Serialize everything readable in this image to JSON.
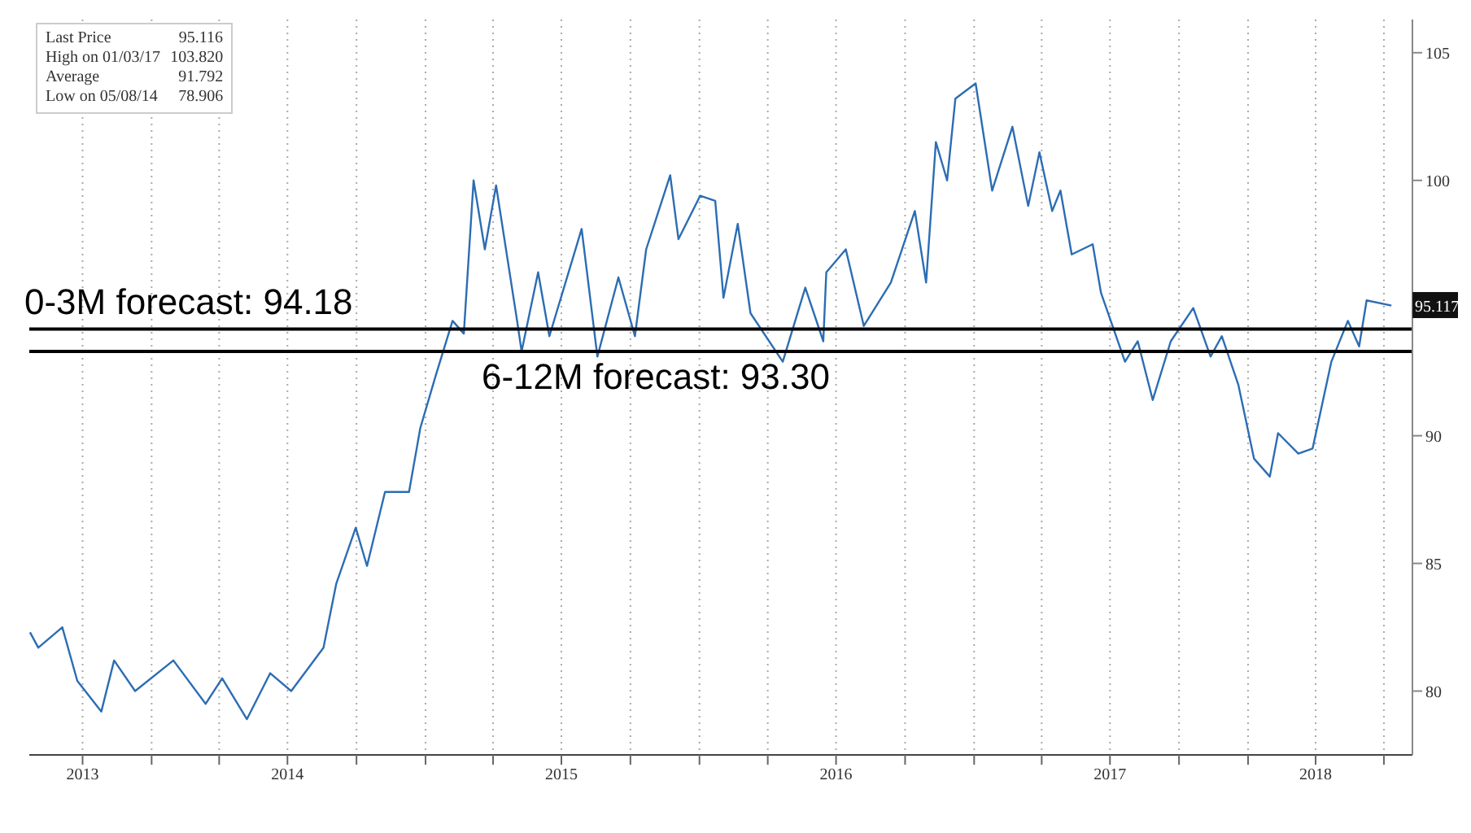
{
  "chart_data": {
    "type": "line",
    "x": [
      "2013-07-23",
      "2013-08-03",
      "2013-09-04",
      "2013-09-24",
      "2013-10-26",
      "2013-11-12",
      "2013-12-10",
      "2014-01-30",
      "2014-03-14",
      "2014-04-05",
      "2014-05-08",
      "2014-06-08",
      "2014-07-06",
      "2014-08-18",
      "2014-09-04",
      "2014-09-30",
      "2014-10-15",
      "2014-11-08",
      "2014-12-10",
      "2014-12-25",
      "2015-01-15",
      "2015-02-06",
      "2015-02-21",
      "2015-03-06",
      "2015-03-21",
      "2015-04-05",
      "2015-05-03",
      "2015-05-09",
      "2015-05-31",
      "2015-06-15",
      "2015-07-28",
      "2015-08-18",
      "2015-09-15",
      "2015-10-07",
      "2015-10-22",
      "2015-11-23",
      "2015-12-04",
      "2016-01-02",
      "2016-01-22",
      "2016-02-02",
      "2016-02-21",
      "2016-03-09",
      "2016-04-21",
      "2016-05-21",
      "2016-06-14",
      "2016-06-18",
      "2016-07-14",
      "2016-08-07",
      "2016-09-12",
      "2016-10-14",
      "2016-10-29",
      "2016-11-11",
      "2016-11-26",
      "2016-12-07",
      "2017-01-03",
      "2017-01-25",
      "2017-02-21",
      "2017-03-14",
      "2017-03-29",
      "2017-04-15",
      "2017-04-26",
      "2017-05-11",
      "2017-06-08",
      "2017-06-19",
      "2017-07-21",
      "2017-08-07",
      "2017-08-27",
      "2017-09-20",
      "2017-10-20",
      "2017-11-12",
      "2017-11-27",
      "2017-12-19",
      "2018-01-09",
      "2018-01-30",
      "2018-02-10",
      "2018-03-09",
      "2018-03-28",
      "2018-04-22",
      "2018-05-14",
      "2018-05-29",
      "2018-06-08",
      "2018-07-11"
    ],
    "series": [
      {
        "color": "#2c6db3",
        "values": [
          82.3,
          81.7,
          82.5,
          80.4,
          79.2,
          81.2,
          80.0,
          81.2,
          79.5,
          80.5,
          78.9,
          80.7,
          80.0,
          81.7,
          84.2,
          86.4,
          84.9,
          87.8,
          87.8,
          90.3,
          92.4,
          94.5,
          94.0,
          100.0,
          97.3,
          99.8,
          94.5,
          93.3,
          96.4,
          93.9,
          98.1,
          93.1,
          96.2,
          93.9,
          97.3,
          100.2,
          97.7,
          99.4,
          99.2,
          95.4,
          98.3,
          94.8,
          92.9,
          95.8,
          93.7,
          96.4,
          97.3,
          94.3,
          96.0,
          98.8,
          96.0,
          101.5,
          100.0,
          103.2,
          103.8,
          99.6,
          102.1,
          99.0,
          101.1,
          98.8,
          99.6,
          97.1,
          97.5,
          95.6,
          92.9,
          93.7,
          91.4,
          93.7,
          95.0,
          93.1,
          93.9,
          92.0,
          89.1,
          88.4,
          90.1,
          89.3,
          89.5,
          92.9,
          94.5,
          93.5,
          95.3,
          95.1
        ]
      }
    ],
    "xlim": [
      "2013-07-22",
      "2018-08-08"
    ],
    "xticks": [
      {
        "value": "2013-10-01",
        "label": "2013"
      },
      {
        "value": "2014-01-01",
        "label": null
      },
      {
        "value": "2014-04-01",
        "label": null
      },
      {
        "value": "2014-07-01",
        "label": "2014"
      },
      {
        "value": "2014-10-01",
        "label": null
      },
      {
        "value": "2015-01-01",
        "label": null
      },
      {
        "value": "2015-04-01",
        "label": null
      },
      {
        "value": "2015-07-01",
        "label": "2015"
      },
      {
        "value": "2015-10-01",
        "label": null
      },
      {
        "value": "2016-01-01",
        "label": null
      },
      {
        "value": "2016-04-01",
        "label": null
      },
      {
        "value": "2016-07-01",
        "label": "2016"
      },
      {
        "value": "2016-10-01",
        "label": null
      },
      {
        "value": "2017-01-01",
        "label": null
      },
      {
        "value": "2017-04-01",
        "label": null
      },
      {
        "value": "2017-07-01",
        "label": "2017"
      },
      {
        "value": "2017-10-01",
        "label": null
      },
      {
        "value": "2018-01-01",
        "label": null
      },
      {
        "value": "2018-04-01",
        "label": "2018"
      },
      {
        "value": "2018-07-01",
        "label": null
      }
    ],
    "ylim": [
      77.5,
      106.3
    ],
    "yticks": [
      80,
      85,
      90,
      100,
      105
    ],
    "grid": true,
    "ref_lines": [
      {
        "axis": "y",
        "value": 94.18,
        "label": "0-3M forecast: 94.18",
        "color": "#000000"
      },
      {
        "axis": "y",
        "value": 93.3,
        "label": "6-12M forecast: 93.30",
        "color": "#000000"
      }
    ],
    "annotations": [
      "Last Price",
      "95.116",
      "High on 01/03/17",
      "103.820",
      "Average",
      "91.792",
      "Low on 05/08/14",
      "78.906",
      {
        "text": "95.117",
        "x": "2018-07-11",
        "y": 95.117
      }
    ]
  }
}
